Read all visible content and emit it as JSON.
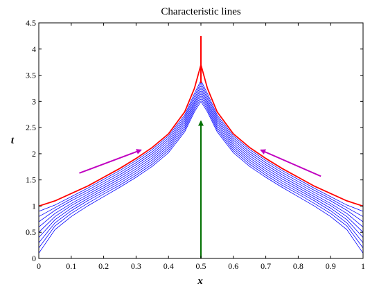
{
  "chart_data": {
    "type": "line",
    "title": "Characteristic lines",
    "xlabel": "x",
    "ylabel": "t",
    "xlim": [
      0,
      1
    ],
    "ylim": [
      0,
      4.5
    ],
    "xticks": [
      0,
      0.1,
      0.2,
      0.3,
      0.4,
      0.5,
      0.6,
      0.7,
      0.8,
      0.9,
      1
    ],
    "yticks": [
      0,
      0.5,
      1,
      1.5,
      2,
      2.5,
      3,
      3.5,
      4,
      4.5
    ],
    "xtick_labels": [
      "0",
      "0.1",
      "0.2",
      "0.3",
      "0.4",
      "0.5",
      "0.6",
      "0.7",
      "0.8",
      "0.9",
      "1"
    ],
    "ytick_labels": [
      "0",
      "0.5",
      "1",
      "1.5",
      "2",
      "2.5",
      "3",
      "3.5",
      "4",
      "4.5"
    ],
    "grid": false,
    "colors": {
      "blue_lines": "#0000ff",
      "red_lines": "#ff0000",
      "green_arrow": "#007000",
      "magenta_arrows": "#c000c0"
    },
    "characteristic_lines": {
      "x": [
        0,
        0.05,
        0.1,
        0.15,
        0.2,
        0.25,
        0.3,
        0.35,
        0.4,
        0.45,
        0.48,
        0.5
      ],
      "series": [
        {
          "color": "blue",
          "t": [
            0.1,
            0.55,
            0.8,
            1.0,
            1.18,
            1.36,
            1.55,
            1.76,
            2.02,
            2.42,
            2.8,
            3.0
          ]
        },
        {
          "color": "blue",
          "t": [
            0.2,
            0.62,
            0.86,
            1.05,
            1.23,
            1.4,
            1.59,
            1.8,
            2.06,
            2.46,
            2.84,
            3.05
          ]
        },
        {
          "color": "blue",
          "t": [
            0.3,
            0.68,
            0.91,
            1.1,
            1.27,
            1.44,
            1.63,
            1.84,
            2.1,
            2.5,
            2.88,
            3.1
          ]
        },
        {
          "color": "blue",
          "t": [
            0.4,
            0.74,
            0.96,
            1.14,
            1.31,
            1.48,
            1.67,
            1.88,
            2.14,
            2.54,
            2.92,
            3.15
          ]
        },
        {
          "color": "blue",
          "t": [
            0.5,
            0.8,
            1.01,
            1.18,
            1.35,
            1.52,
            1.71,
            1.92,
            2.18,
            2.58,
            2.96,
            3.2
          ]
        },
        {
          "color": "blue",
          "t": [
            0.6,
            0.86,
            1.05,
            1.22,
            1.39,
            1.56,
            1.75,
            1.96,
            2.22,
            2.62,
            3.0,
            3.25
          ]
        },
        {
          "color": "blue",
          "t": [
            0.7,
            0.92,
            1.1,
            1.26,
            1.43,
            1.6,
            1.79,
            2.0,
            2.26,
            2.66,
            3.05,
            3.3
          ]
        },
        {
          "color": "blue",
          "t": [
            0.8,
            0.97,
            1.14,
            1.3,
            1.47,
            1.64,
            1.83,
            2.04,
            2.3,
            2.7,
            3.1,
            3.35
          ]
        },
        {
          "color": "blue",
          "t": [
            0.9,
            1.02,
            1.18,
            1.34,
            1.51,
            1.68,
            1.87,
            2.08,
            2.34,
            2.74,
            3.15,
            3.4
          ]
        },
        {
          "color": "red",
          "t": [
            1.0,
            1.1,
            1.24,
            1.38,
            1.55,
            1.72,
            1.91,
            2.12,
            2.38,
            2.8,
            3.25,
            3.7
          ]
        }
      ]
    },
    "red_vertical_line": {
      "x": 0.5,
      "t": [
        3.35,
        4.25
      ]
    },
    "green_arrow": {
      "x": 0.5,
      "t_start": 0,
      "t_end": 2.62
    },
    "magenta_arrows": [
      {
        "from": [
          0.125,
          1.63
        ],
        "to": [
          0.315,
          2.07
        ]
      },
      {
        "from": [
          0.87,
          1.57
        ],
        "to": [
          0.685,
          2.07
        ]
      }
    ]
  }
}
